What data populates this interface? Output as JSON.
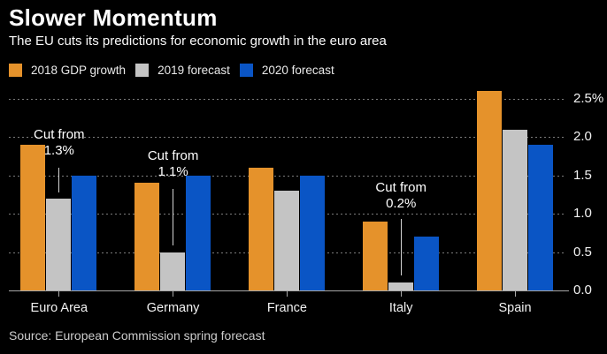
{
  "chart_data": {
    "type": "bar",
    "title": "Slower Momentum",
    "subtitle": "The EU cuts its predictions for economic growth in the euro area",
    "unit": "%",
    "categories": [
      "Euro Area",
      "Germany",
      "France",
      "Italy",
      "Spain"
    ],
    "series": [
      {
        "name": "2018 GDP growth",
        "color": "#E5922B",
        "values": [
          1.9,
          1.4,
          1.6,
          0.9,
          2.6
        ]
      },
      {
        "name": "2019 forecast",
        "color": "#C4C4C4",
        "values": [
          1.2,
          0.5,
          1.3,
          0.1,
          2.1
        ]
      },
      {
        "name": "2020 forecast",
        "color": "#0A55C5",
        "values": [
          1.5,
          1.5,
          1.5,
          0.7,
          1.9
        ]
      }
    ],
    "ylim": [
      0,
      2.66
    ],
    "yticks": {
      "values": [
        2.5,
        2.0,
        1.5,
        1.0,
        0.5,
        0.0
      ],
      "labels": [
        "2.5%",
        "2.0",
        "1.5",
        "1.0",
        "0.5",
        "0.0"
      ]
    },
    "grid": "horizontal-dotted",
    "legend_position": "top-left",
    "annotations": [
      {
        "category": "Euro Area",
        "lines": [
          "Cut from",
          "1.3%"
        ]
      },
      {
        "category": "Germany",
        "lines": [
          "Cut from",
          "1.1%"
        ]
      },
      {
        "category": "Italy",
        "lines": [
          "Cut from",
          "0.2%"
        ]
      }
    ],
    "colors": {
      "background": "#000000",
      "text": "#FFFFFF",
      "grid": "#7C7C7C",
      "axis": "#A8A8A8"
    }
  },
  "footer": {
    "source_line": "Source: European Commission spring forecast"
  }
}
